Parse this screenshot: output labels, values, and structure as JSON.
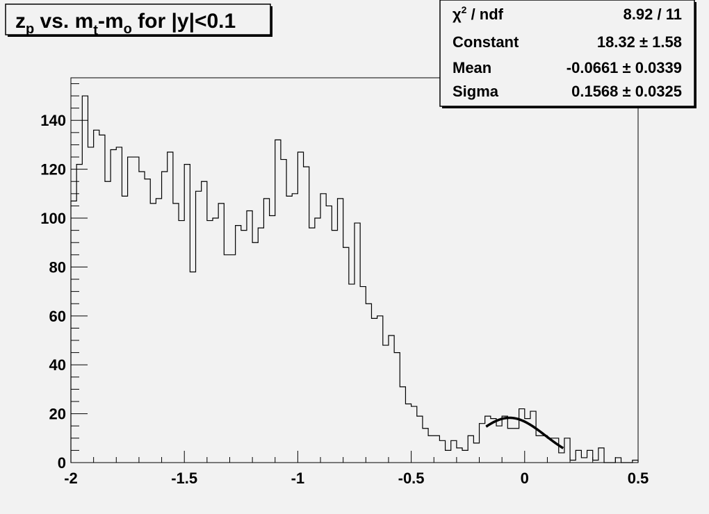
{
  "chart_data": {
    "type": "histogram",
    "title": "z_p vs. m_t-m_o for |y|<0.1",
    "title_parts": {
      "a": "z",
      "a_sub": "p",
      "b": " vs. m",
      "b_sub": "t",
      "c": "-m",
      "c_sub": "o",
      "d": " for |y|<0.1"
    },
    "xlim": [
      -2,
      0.5
    ],
    "ylim": [
      0,
      157.4
    ],
    "bin_width": 0.025,
    "x_ticks": [
      -2,
      -1.5,
      -1,
      -0.5,
      0,
      0.5
    ],
    "x_tick_labels": [
      "-2",
      "-1.5",
      "-1",
      "-0.5",
      "0",
      "0.5"
    ],
    "y_ticks": [
      0,
      20,
      40,
      60,
      80,
      100,
      120,
      140
    ],
    "y_tick_labels": [
      "0",
      "20",
      "40",
      "60",
      "80",
      "100",
      "120",
      "140"
    ],
    "counts": [
      107,
      122,
      150,
      129,
      136,
      134,
      115,
      128,
      129,
      109,
      125,
      125,
      119,
      116,
      106,
      108,
      119,
      127,
      106,
      99,
      122,
      78,
      111,
      115,
      99,
      100,
      106,
      85,
      85,
      97,
      95,
      103,
      90,
      96,
      108,
      101,
      132,
      124,
      109,
      110,
      127,
      121,
      96,
      100,
      110,
      105,
      95,
      108,
      88,
      73,
      98,
      72,
      65,
      59,
      60,
      48,
      52,
      45,
      31,
      24,
      23,
      19,
      14,
      11,
      11,
      9,
      5,
      9,
      6,
      5,
      11,
      8,
      16,
      19,
      18,
      15,
      19,
      14,
      14,
      22,
      18,
      21,
      11,
      11,
      10,
      10,
      4,
      10,
      1,
      5,
      2,
      5,
      1,
      6,
      0,
      0,
      2,
      0,
      0,
      1
    ],
    "fit": {
      "function": "gaus",
      "range": [
        -0.17,
        0.17
      ],
      "constant": 18.32,
      "mean": -0.0661,
      "sigma": 0.1568
    },
    "stats_box": {
      "rows": [
        {
          "label": "χ² / ndf",
          "label_main": "χ",
          "label_sup": "2",
          "label_rest": " / ndf",
          "value": "8.92 / 11"
        },
        {
          "label": "Constant",
          "value": "18.32 ± 1.58"
        },
        {
          "label": "Mean",
          "value": "-0.0661 ± 0.0339"
        },
        {
          "label": "Sigma",
          "value": "0.1568 ± 0.0325"
        }
      ]
    },
    "colors": {
      "background": "#f2f2f2",
      "line": "#000000"
    }
  }
}
